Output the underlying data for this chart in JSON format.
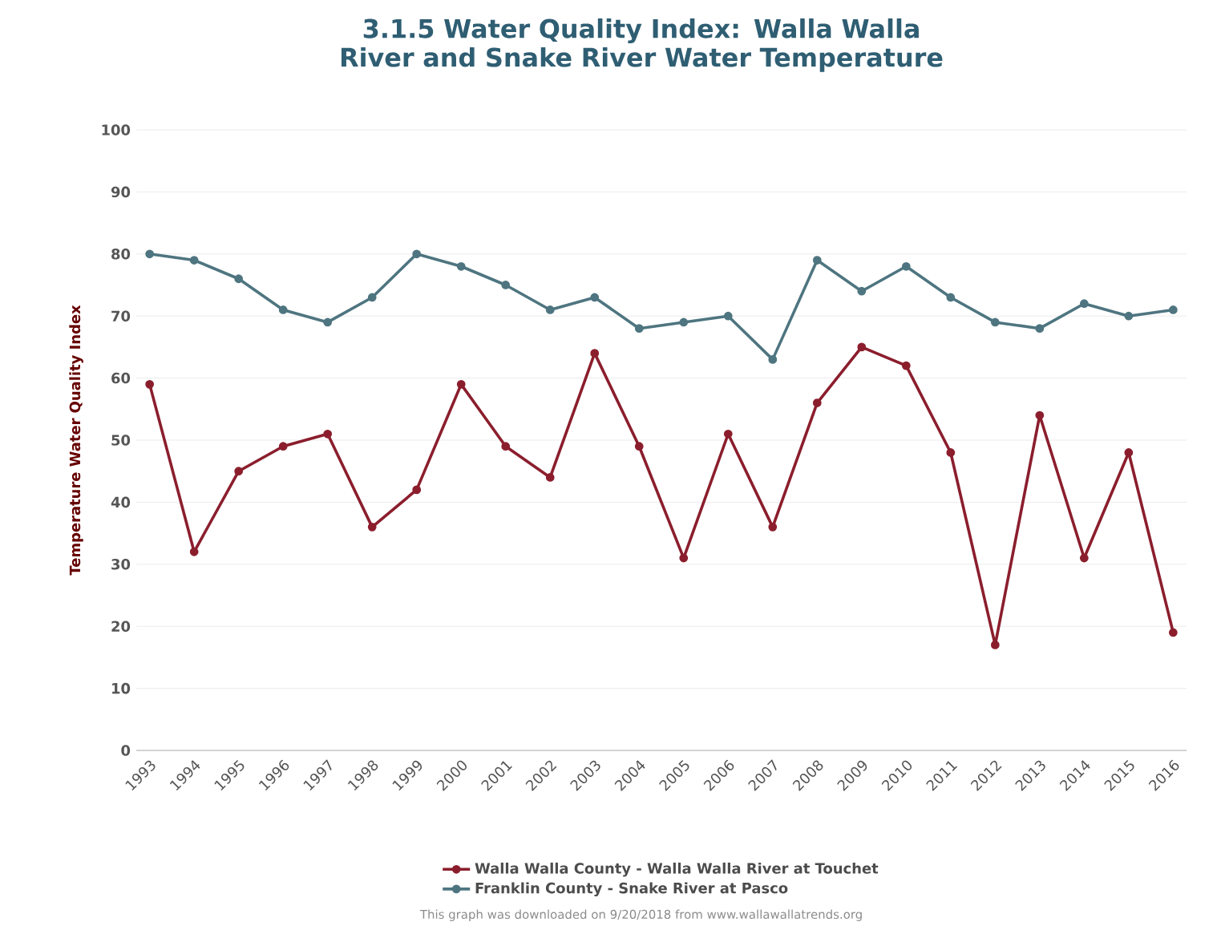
{
  "chart_data": {
    "type": "line",
    "title": "3.1.5 Water Quality Index: Walla Walla River and Snake River Water Temperature",
    "ylabel": "Temperature Water Quality Index",
    "categories": [
      "1993",
      "1994",
      "1995",
      "1996",
      "1997",
      "1998",
      "1999",
      "2000",
      "2001",
      "2002",
      "2003",
      "2004",
      "2005",
      "2006",
      "2007",
      "2008",
      "2009",
      "2010",
      "2011",
      "2012",
      "2013",
      "2014",
      "2015",
      "2016"
    ],
    "series": [
      {
        "name": "Walla Walla County - Walla Walla River at Touchet",
        "color": "#8b1e2d",
        "values": [
          59,
          32,
          45,
          49,
          51,
          36,
          42,
          59,
          49,
          44,
          64,
          49,
          31,
          51,
          36,
          56,
          65,
          62,
          48,
          17,
          54,
          31,
          48,
          19
        ]
      },
      {
        "name": "Franklin County - Snake River at Pasco",
        "color": "#4e7580",
        "values": [
          80,
          79,
          76,
          71,
          69,
          73,
          80,
          78,
          75,
          71,
          73,
          68,
          69,
          70,
          63,
          79,
          74,
          78,
          73,
          69,
          68,
          72,
          70,
          71
        ]
      }
    ],
    "ylim": [
      0,
      100
    ],
    "yticks": [
      0,
      10,
      20,
      30,
      40,
      50,
      60,
      70,
      80,
      90,
      100
    ],
    "grid": "y",
    "legend": "bottom",
    "marker": "circle",
    "line_style": "solid",
    "annotations": [
      "This graph was downloaded on 9/20/2018 from www.wallawallatrends.org"
    ]
  }
}
